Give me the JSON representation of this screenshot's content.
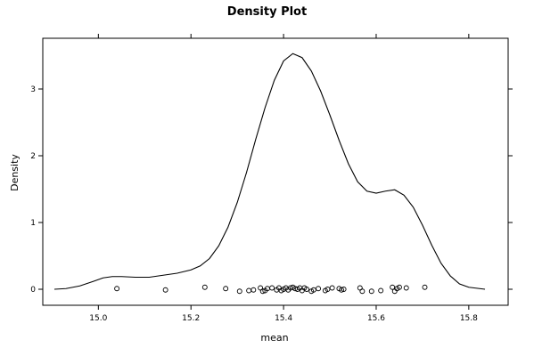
{
  "chart_data": {
    "type": "line",
    "title": "Density Plot",
    "xlabel": "mean",
    "ylabel": "Density",
    "xlim": [
      14.88,
      15.885
    ],
    "ylim": [
      -0.24,
      3.76
    ],
    "x_ticks": [
      15.0,
      15.2,
      15.4,
      15.6,
      15.8
    ],
    "x_tick_labels": [
      "15.0",
      "15.2",
      "15.4",
      "15.6",
      "15.8"
    ],
    "y_ticks": [
      0,
      1,
      2,
      3
    ],
    "y_tick_labels": [
      "0",
      "1",
      "2",
      "3"
    ],
    "grid": false,
    "legend": "none",
    "series": [
      {
        "kind": "density-curve",
        "x": [
          14.905,
          14.93,
          14.96,
          14.99,
          15.01,
          15.03,
          15.05,
          15.08,
          15.11,
          15.14,
          15.17,
          15.2,
          15.22,
          15.24,
          15.26,
          15.28,
          15.3,
          15.32,
          15.34,
          15.36,
          15.38,
          15.4,
          15.42,
          15.44,
          15.46,
          15.48,
          15.5,
          15.52,
          15.54,
          15.56,
          15.58,
          15.6,
          15.62,
          15.64,
          15.66,
          15.68,
          15.7,
          15.72,
          15.74,
          15.76,
          15.78,
          15.8,
          15.835
        ],
        "y": [
          0.0,
          0.01,
          0.05,
          0.12,
          0.17,
          0.19,
          0.19,
          0.18,
          0.18,
          0.21,
          0.24,
          0.29,
          0.35,
          0.46,
          0.65,
          0.93,
          1.3,
          1.75,
          2.25,
          2.72,
          3.13,
          3.42,
          3.53,
          3.47,
          3.27,
          2.97,
          2.61,
          2.23,
          1.88,
          1.61,
          1.47,
          1.44,
          1.47,
          1.49,
          1.41,
          1.23,
          0.96,
          0.66,
          0.39,
          0.2,
          0.08,
          0.03,
          0.0
        ]
      },
      {
        "kind": "jittered-points",
        "x": [
          15.04,
          15.145,
          15.23,
          15.275,
          15.305,
          15.325,
          15.335,
          15.35,
          15.355,
          15.36,
          15.365,
          15.375,
          15.385,
          15.39,
          15.395,
          15.4,
          15.405,
          15.41,
          15.415,
          15.42,
          15.425,
          15.43,
          15.435,
          15.44,
          15.445,
          15.45,
          15.46,
          15.465,
          15.475,
          15.49,
          15.495,
          15.505,
          15.52,
          15.525,
          15.53,
          15.565,
          15.57,
          15.59,
          15.61,
          15.635,
          15.64,
          15.645,
          15.65,
          15.665,
          15.705
        ],
        "y": [
          0.01,
          -0.01,
          0.03,
          0.01,
          -0.03,
          -0.02,
          -0.01,
          0.02,
          -0.03,
          -0.02,
          0.01,
          0.02,
          -0.01,
          0.02,
          -0.02,
          0.0,
          0.02,
          -0.01,
          0.02,
          0.03,
          0.01,
          0.0,
          0.02,
          -0.02,
          0.02,
          0.0,
          -0.03,
          -0.01,
          0.01,
          -0.02,
          0.0,
          0.02,
          0.01,
          -0.01,
          0.0,
          0.02,
          -0.03,
          -0.03,
          -0.02,
          0.03,
          -0.03,
          0.01,
          0.03,
          0.02,
          0.03
        ]
      }
    ]
  }
}
